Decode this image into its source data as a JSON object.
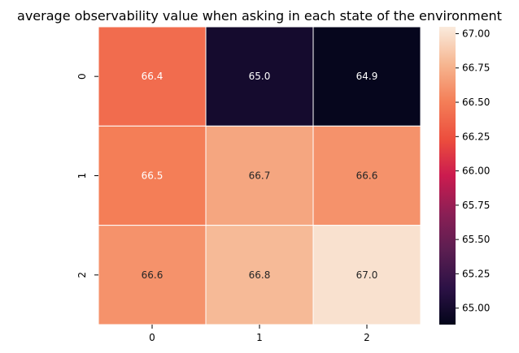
{
  "chart_data": {
    "type": "heatmap",
    "title": "average observability value when asking in each state of the environment",
    "xlabel": "",
    "ylabel": "",
    "x_categories": [
      "0",
      "1",
      "2"
    ],
    "y_categories": [
      "0",
      "1",
      "2"
    ],
    "values": [
      [
        66.4,
        65.0,
        64.9
      ],
      [
        66.5,
        66.7,
        66.6
      ],
      [
        66.6,
        66.8,
        67.0
      ]
    ],
    "cell_labels": [
      [
        "66.4",
        "65.0",
        "64.9"
      ],
      [
        "66.5",
        "66.7",
        "66.6"
      ],
      [
        "66.6",
        "66.8",
        "67.0"
      ]
    ],
    "vmin": 64.88,
    "vmax": 67.05,
    "colormap": "rocket",
    "colorbar_ticks": [
      "65.00",
      "65.25",
      "65.50",
      "65.75",
      "66.00",
      "66.25",
      "66.50",
      "66.75",
      "67.00"
    ],
    "grid": false,
    "legend": "colorbar-right"
  }
}
